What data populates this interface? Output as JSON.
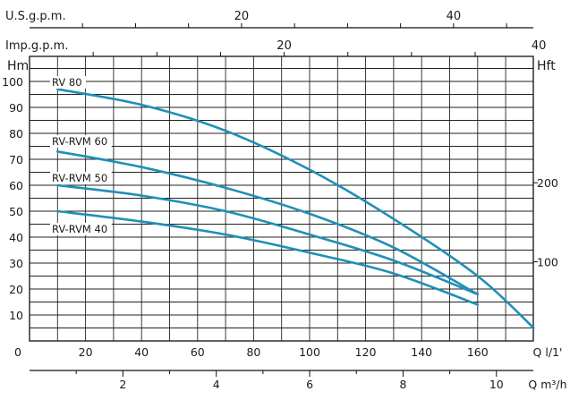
{
  "chart_data": {
    "type": "line",
    "main_x_axis": {
      "label": "Q l/1'",
      "ticks": [
        0,
        20,
        40,
        60,
        80,
        100,
        120,
        140,
        160
      ],
      "range": [
        0,
        180
      ]
    },
    "y_left_axis": {
      "label": "Hm",
      "ticks": [
        10,
        20,
        30,
        40,
        50,
        60,
        70,
        80,
        90,
        100
      ],
      "range": [
        0,
        108
      ]
    },
    "y_right_axis": {
      "label": "Hft",
      "ticks": [
        100,
        200
      ]
    },
    "top_axis_usgpm": {
      "label": "U.S.g.p.m.",
      "ticks": [
        20,
        40
      ]
    },
    "top_axis_impgpm": {
      "label": "Imp.g.p.m.",
      "ticks": [
        20,
        40
      ]
    },
    "bottom_axis_m3h": {
      "label": "Q m³/h",
      "ticks": [
        2,
        4,
        6,
        8,
        10
      ]
    },
    "grid": true,
    "curve_color": "#1f8fb8",
    "series": [
      {
        "name": "RV 80",
        "x": [
          10,
          40,
          70,
          100,
          130,
          160,
          180
        ],
        "y": [
          97,
          91,
          81,
          66,
          47,
          25,
          5
        ]
      },
      {
        "name": "RV-RVM 60",
        "x": [
          10,
          40,
          70,
          100,
          130,
          160
        ],
        "y": [
          73,
          67,
          59,
          49,
          36,
          18
        ]
      },
      {
        "name": "RV-RVM 50",
        "x": [
          10,
          40,
          70,
          100,
          130,
          160
        ],
        "y": [
          60,
          56,
          50,
          41,
          31,
          18
        ]
      },
      {
        "name": "RV-RVM 40",
        "x": [
          10,
          40,
          70,
          100,
          130,
          160
        ],
        "y": [
          50,
          46,
          41,
          34,
          26,
          14
        ]
      }
    ]
  }
}
